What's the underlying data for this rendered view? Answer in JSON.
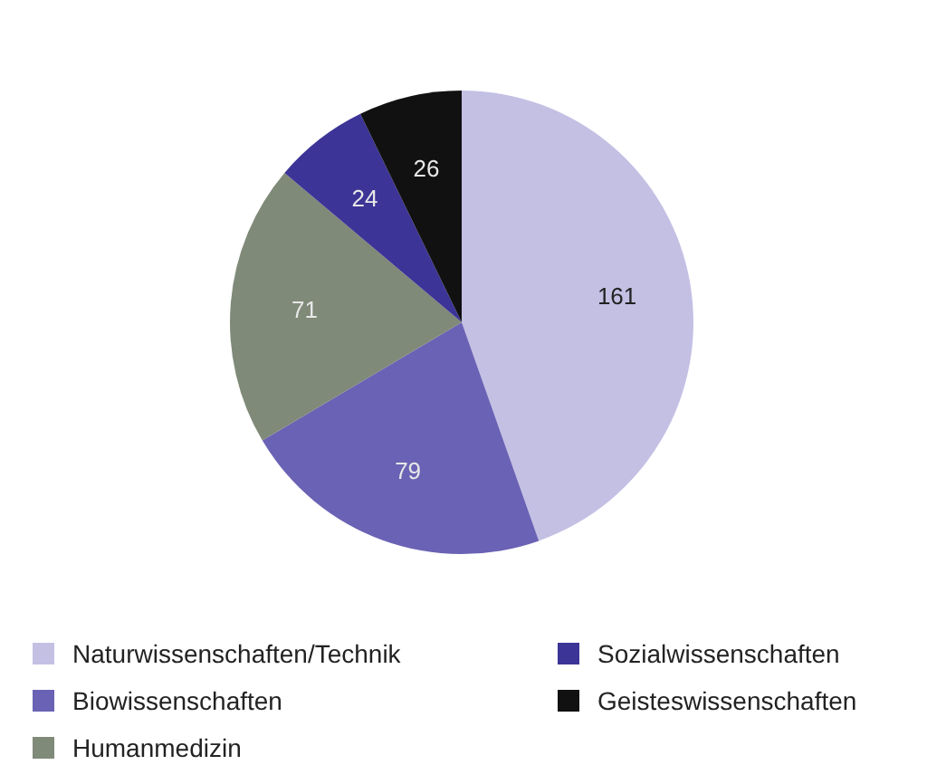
{
  "chart_data": {
    "type": "pie",
    "categories": [
      "Naturwissenschaften/Technik",
      "Biowissenschaften",
      "Humanmedizin",
      "Sozialwissenschaften",
      "Geisteswissenschaften"
    ],
    "values": [
      161,
      79,
      71,
      24,
      26
    ],
    "colors": [
      "#c4c0e4",
      "#6a62b4",
      "#7f8a78",
      "#3c3496",
      "#111111"
    ],
    "data_labels": true,
    "legend": "bottom"
  }
}
